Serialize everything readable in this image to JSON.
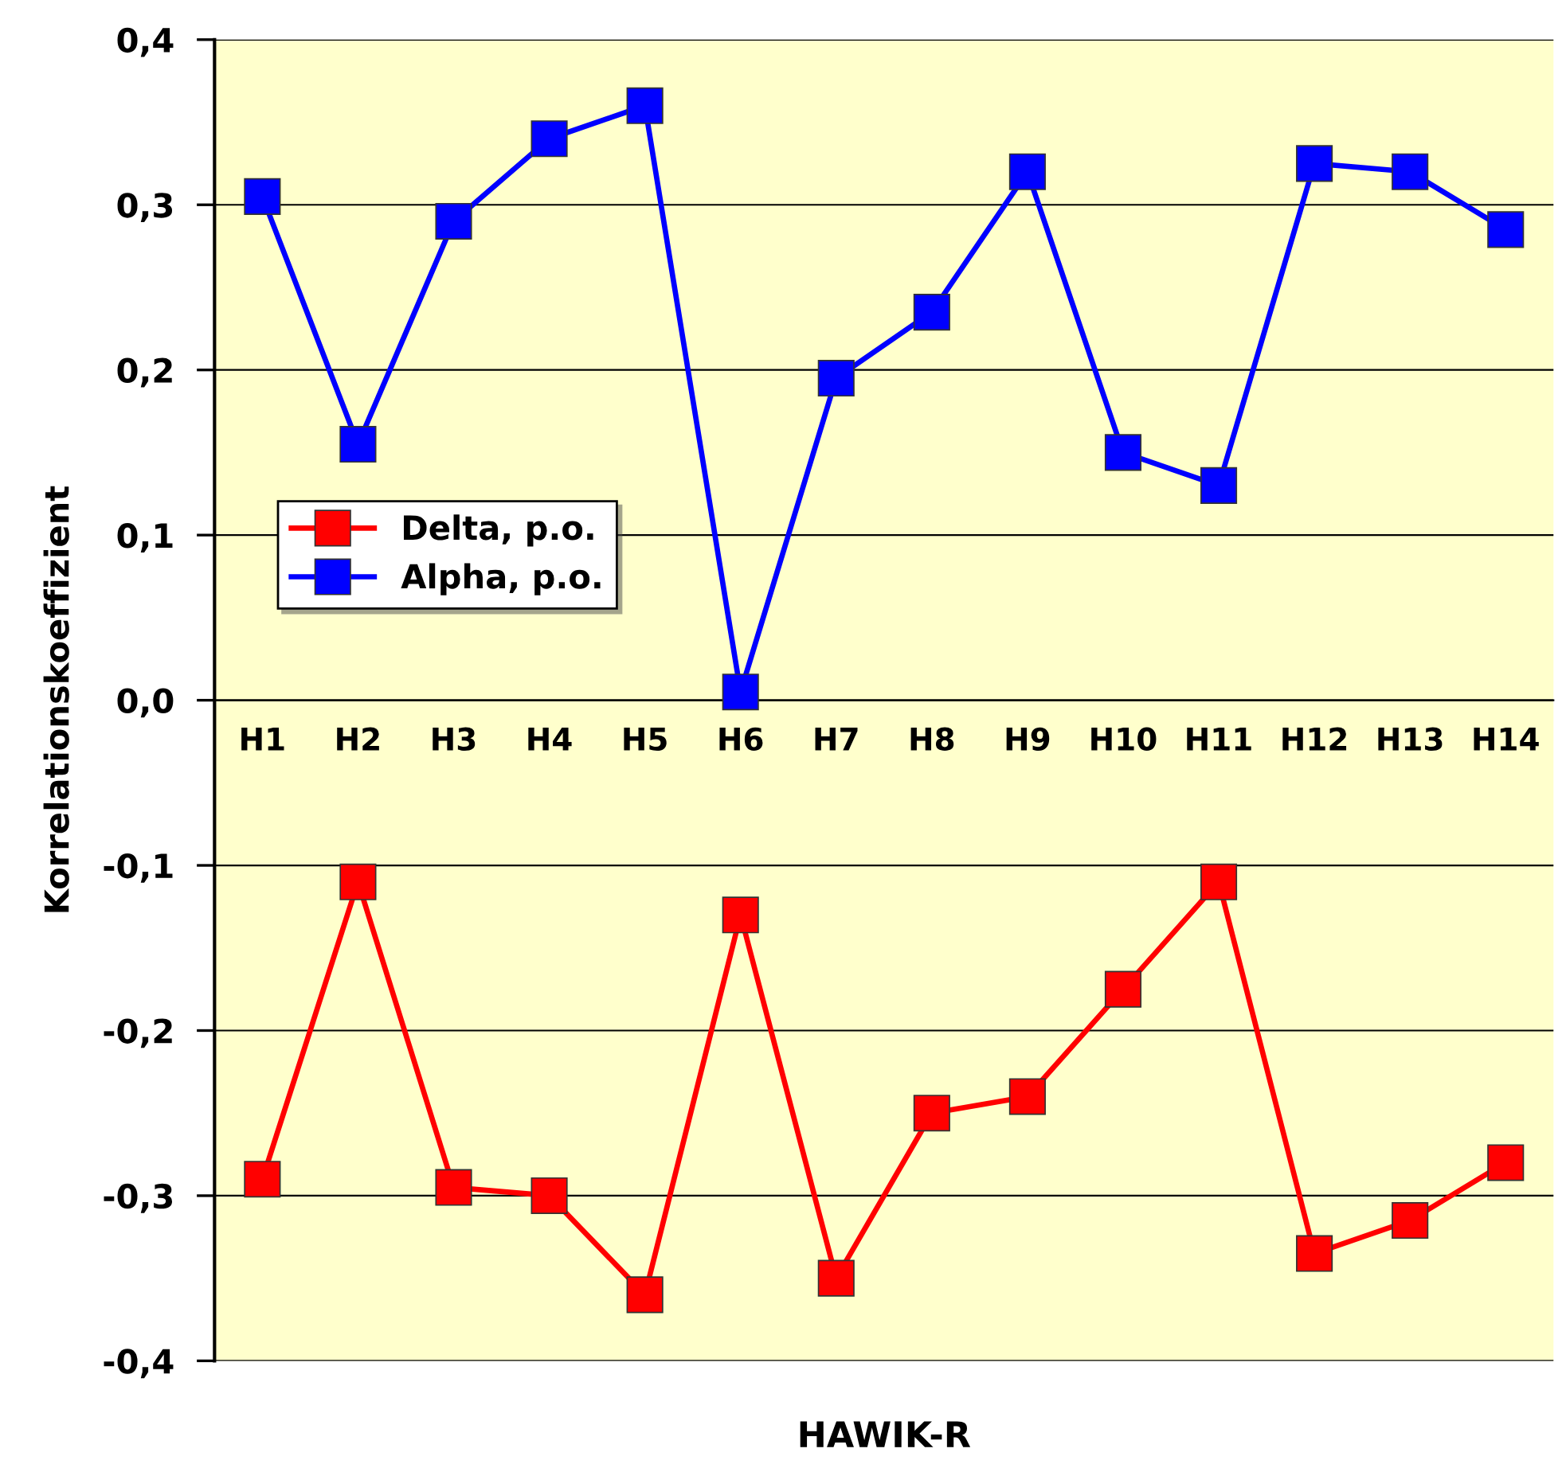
{
  "chart_data": {
    "type": "line",
    "xlabel": "HAWIK-R",
    "ylabel": "Korrelationskoeffizient",
    "categories": [
      "H1",
      "H2",
      "H3",
      "H4",
      "H5",
      "H6",
      "H7",
      "H8",
      "H9",
      "H10",
      "H11",
      "H12",
      "H13",
      "H14"
    ],
    "series": [
      {
        "name": "Delta, p.o.",
        "color": "#ff0000",
        "values": [
          -0.29,
          -0.11,
          -0.295,
          -0.3,
          -0.36,
          -0.13,
          -0.35,
          -0.25,
          -0.24,
          -0.175,
          -0.11,
          -0.335,
          -0.315,
          -0.28
        ]
      },
      {
        "name": "Alpha, p.o.",
        "color": "#0000ff",
        "values": [
          0.305,
          0.155,
          0.29,
          0.34,
          0.36,
          0.005,
          0.195,
          0.235,
          0.32,
          0.15,
          0.13,
          0.325,
          0.32,
          0.285
        ]
      }
    ],
    "ylim": [
      -0.4,
      0.4
    ],
    "yticks": [
      {
        "value": -0.4,
        "label": "-0,4"
      },
      {
        "value": -0.3,
        "label": "-0,3"
      },
      {
        "value": -0.2,
        "label": "-0,2"
      },
      {
        "value": -0.1,
        "label": "-0,1"
      },
      {
        "value": 0.0,
        "label": "0,0"
      },
      {
        "value": 0.1,
        "label": "0,1"
      },
      {
        "value": 0.2,
        "label": "0,2"
      },
      {
        "value": 0.3,
        "label": "0,3"
      },
      {
        "value": 0.4,
        "label": "0,4"
      }
    ],
    "grid": "y",
    "legend": "left",
    "marker": "square",
    "line_style": "solid"
  }
}
